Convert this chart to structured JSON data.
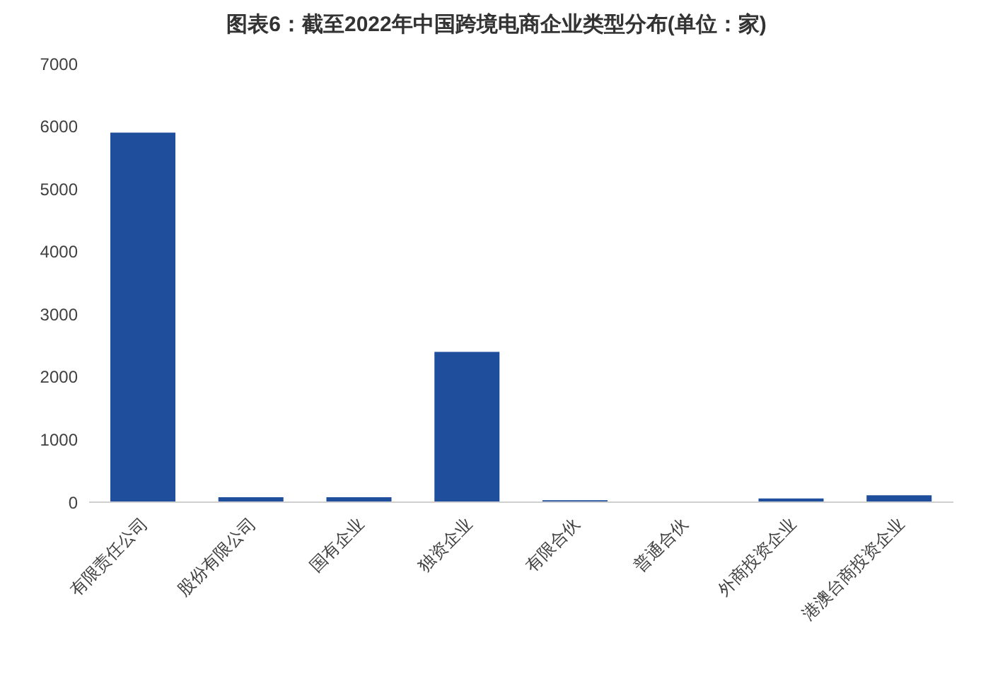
{
  "chart_data": {
    "type": "bar",
    "title": "图表6：截至2022年中国跨境电商企业类型分布(单位：家)",
    "categories": [
      "有限责任公司",
      "股份有限公司",
      "国有企业",
      "独资企业",
      "有限合伙",
      "普通合伙",
      "外商投资企业",
      "港澳台商投资企业"
    ],
    "values": [
      5900,
      80,
      80,
      2400,
      30,
      0,
      60,
      110
    ],
    "color": "#1f4e9c",
    "ylim": [
      0,
      7000
    ],
    "yticks": [
      0,
      1000,
      2000,
      3000,
      4000,
      5000,
      6000,
      7000
    ],
    "grid": false,
    "legend": false
  }
}
